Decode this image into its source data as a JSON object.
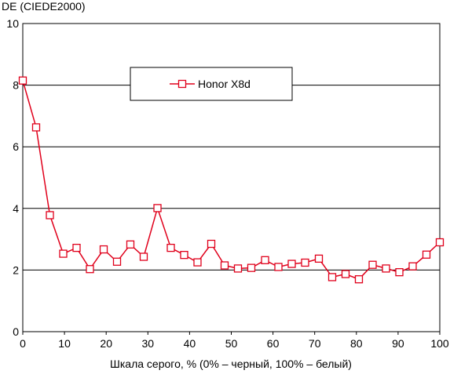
{
  "chart_data": {
    "type": "line",
    "ylabel": "DE (CIEDE2000)",
    "xlabel": "Шкала серого, % (0% – черный, 100% – белый)",
    "xlim": [
      0,
      100
    ],
    "ylim": [
      0,
      10
    ],
    "x_ticks": [
      0,
      10,
      20,
      30,
      40,
      50,
      60,
      70,
      80,
      90,
      100
    ],
    "y_ticks": [
      0,
      2,
      4,
      6,
      8,
      10
    ],
    "grid": "horizontal",
    "legend_position": "top-center",
    "series": [
      {
        "name": "Honor X8d",
        "color": "#e0001b",
        "marker": "square",
        "x": [
          0,
          3.2,
          6.5,
          9.7,
          12.9,
          16.1,
          19.4,
          22.6,
          25.8,
          29.0,
          32.3,
          35.5,
          38.7,
          41.9,
          45.2,
          48.4,
          51.6,
          54.8,
          58.1,
          61.3,
          64.5,
          67.7,
          71.0,
          74.2,
          77.4,
          80.6,
          83.9,
          87.1,
          90.3,
          93.5,
          96.8,
          100
        ],
        "y": [
          8.15,
          6.63,
          3.78,
          2.53,
          2.72,
          2.03,
          2.67,
          2.27,
          2.83,
          2.43,
          4.01,
          2.72,
          2.49,
          2.25,
          2.85,
          2.15,
          2.05,
          2.07,
          2.32,
          2.1,
          2.2,
          2.24,
          2.37,
          1.77,
          1.87,
          1.7,
          2.17,
          2.05,
          1.93,
          2.12,
          2.5,
          2.9
        ]
      }
    ]
  }
}
